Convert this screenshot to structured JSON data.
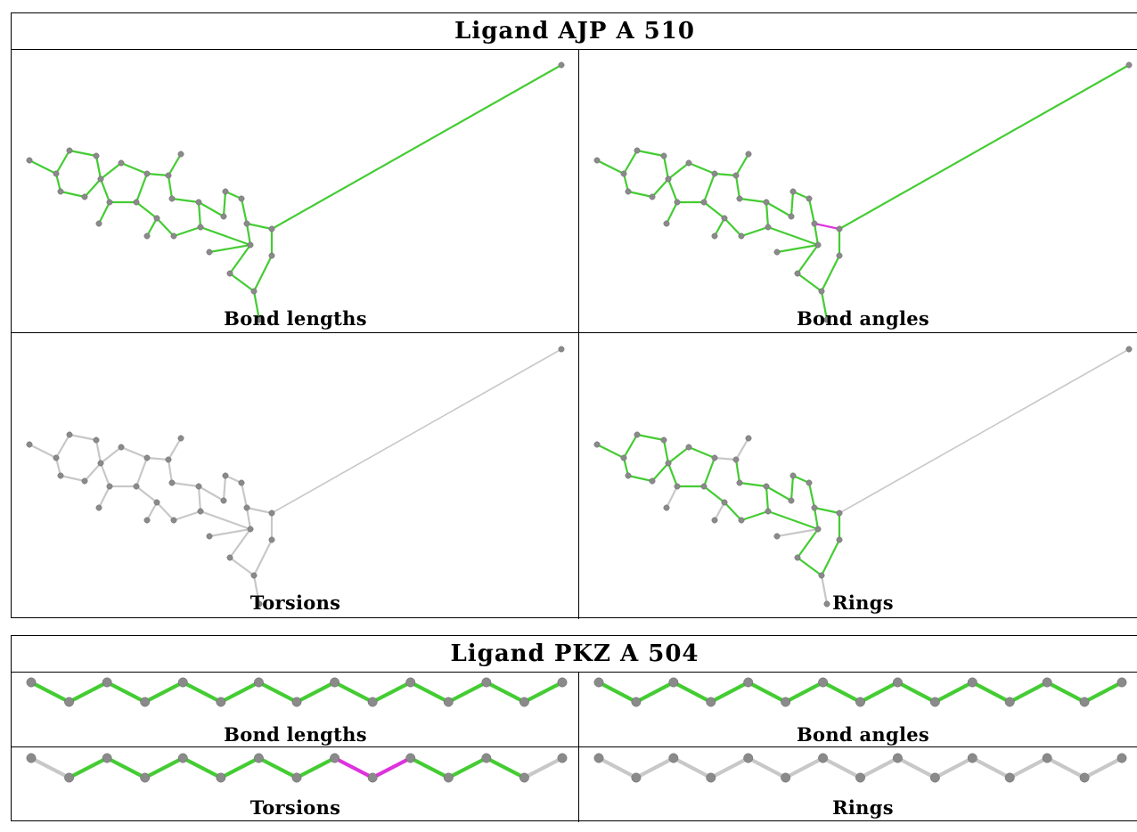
{
  "ligand1": {
    "title": "Ligand AJP A 510",
    "captions": {
      "bond_lengths": "Bond lengths",
      "bond_angles": "Bond angles",
      "torsions": "Torsions",
      "rings": "Rings"
    }
  },
  "ligand2": {
    "title": "Ligand PKZ A 504",
    "captions": {
      "bond_lengths": "Bond lengths",
      "bond_angles": "Bond angles",
      "torsions": "Torsions",
      "rings": "Rings"
    }
  },
  "colors": {
    "ok": "#44cc33",
    "outlier": "#dd33dd",
    "neutral": "#c8c8c8",
    "atom": "#8a8a8a"
  }
}
